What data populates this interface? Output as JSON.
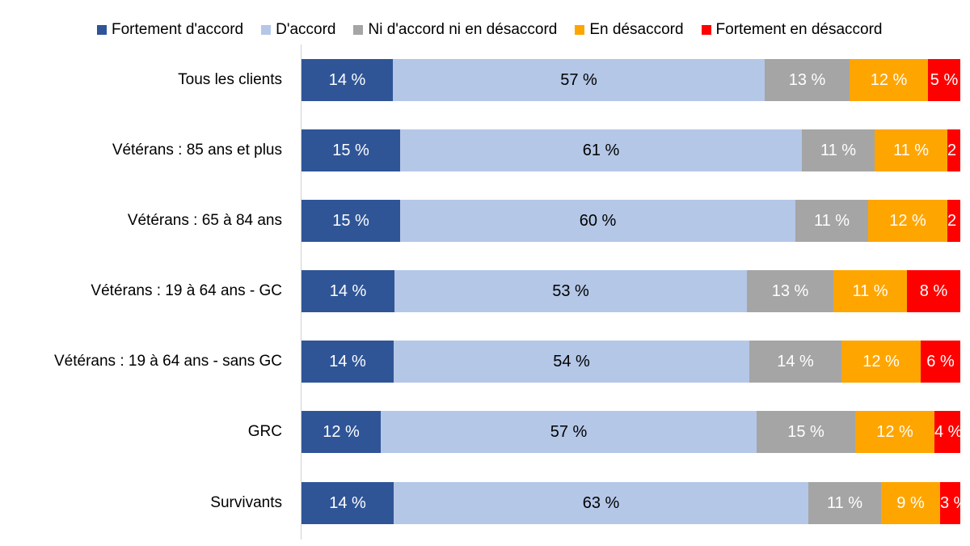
{
  "chart_data": {
    "type": "bar",
    "orientation": "horizontal",
    "stacked": true,
    "percent_stacked": true,
    "title": "",
    "xlabel": "",
    "ylabel": "",
    "grid": false,
    "legend_position": "top",
    "value_suffix": " %",
    "categories": [
      "Tous les clients",
      "Vétérans : 85 ans et plus",
      "Vétérans : 65 à 84 ans",
      "Vétérans : 19 à 64 ans - GC",
      "Vétérans : 19 à 64 ans - sans GC",
      "GRC",
      "Survivants"
    ],
    "series": [
      {
        "name": "Fortement d'accord",
        "color": "#2F5597",
        "label_color": "#ffffff",
        "values": [
          14,
          15,
          15,
          14,
          14,
          12,
          14
        ]
      },
      {
        "name": "D'accord",
        "color": "#B4C7E7",
        "label_color": "#000000",
        "values": [
          57,
          61,
          60,
          53,
          54,
          57,
          63
        ]
      },
      {
        "name": "Ni d'accord ni en désaccord",
        "color": "#A5A5A5",
        "label_color": "#ffffff",
        "values": [
          13,
          11,
          11,
          13,
          14,
          15,
          11
        ]
      },
      {
        "name": "En désaccord",
        "color": "#FFA500",
        "label_color": "#ffffff",
        "values": [
          12,
          11,
          12,
          11,
          12,
          12,
          9
        ]
      },
      {
        "name": "Fortement en désaccord",
        "color": "#FF0000",
        "label_color": "#ffffff",
        "values": [
          5,
          2,
          2,
          8,
          6,
          4,
          3
        ]
      }
    ]
  },
  "legend": [
    {
      "label": "Fortement d'accord",
      "color": "#2F5597"
    },
    {
      "label": "D'accord",
      "color": "#B4C7E7"
    },
    {
      "label": "Ni d'accord ni en désaccord",
      "color": "#A5A5A5"
    },
    {
      "label": "En désaccord",
      "color": "#FFA500"
    },
    {
      "label": "Fortement en désaccord",
      "color": "#FF0000"
    }
  ],
  "rows": [
    {
      "label": "Tous les clients",
      "segments": [
        "14 %",
        "57 %",
        "13 %",
        "12 %",
        "5 %"
      ]
    },
    {
      "label": "Vétérans : 85 ans et plus",
      "segments": [
        "15 %",
        "61 %",
        "11 %",
        "11 %",
        "2 %"
      ]
    },
    {
      "label": "Vétérans : 65 à 84 ans",
      "segments": [
        "15 %",
        "60 %",
        "11 %",
        "12 %",
        "2 %"
      ]
    },
    {
      "label": "Vétérans : 19 à 64 ans - GC",
      "segments": [
        "14 %",
        "53 %",
        "13 %",
        "11 %",
        "8 %"
      ]
    },
    {
      "label": "Vétérans : 19 à 64 ans - sans GC",
      "segments": [
        "14 %",
        "54 %",
        "14 %",
        "12 %",
        "6 %"
      ]
    },
    {
      "label": "GRC",
      "segments": [
        "12 %",
        "57 %",
        "15 %",
        "12 %",
        "4 %"
      ]
    },
    {
      "label": "Survivants",
      "segments": [
        "14 %",
        "63 %",
        "11 %",
        "9 %",
        "3 %"
      ]
    }
  ]
}
